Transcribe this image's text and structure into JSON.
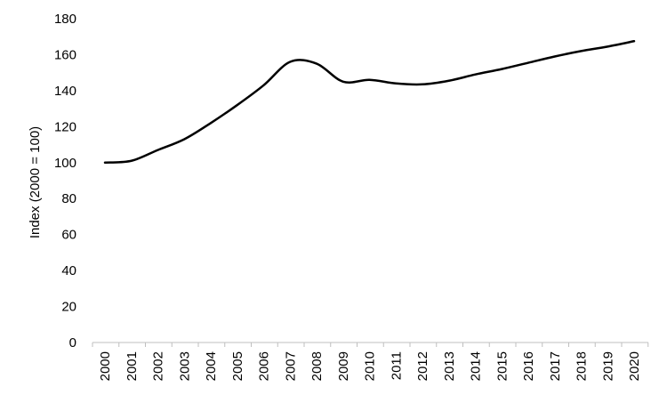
{
  "chart_data": {
    "type": "line",
    "title": "",
    "xlabel": "",
    "ylabel": "Index (2000 = 100)",
    "ylim": [
      0,
      180
    ],
    "y_ticks": [
      0,
      20,
      40,
      60,
      80,
      100,
      120,
      140,
      160,
      180
    ],
    "x_ticks": [
      "2000",
      "2001",
      "2002",
      "2003",
      "2004",
      "2005",
      "2006",
      "2007",
      "2008",
      "2009",
      "2010",
      "2011",
      "2012",
      "2013",
      "2014",
      "2015",
      "2016",
      "2017",
      "2018",
      "2019",
      "2020"
    ],
    "grid": false,
    "legend": "none",
    "line_color": "#000000",
    "series": [
      {
        "x": [
          2000,
          2001,
          2002,
          2003,
          2004,
          2005,
          2006,
          2007,
          2008,
          2009,
          2010,
          2011,
          2012,
          2013,
          2014,
          2015,
          2016,
          2017,
          2018,
          2019,
          2020
        ],
        "values": [
          100,
          101,
          107,
          113,
          122,
          132,
          143,
          156,
          155,
          145,
          146,
          144,
          143.5,
          145.5,
          149,
          152,
          155.5,
          159,
          162,
          164.5,
          167.5
        ]
      }
    ]
  }
}
